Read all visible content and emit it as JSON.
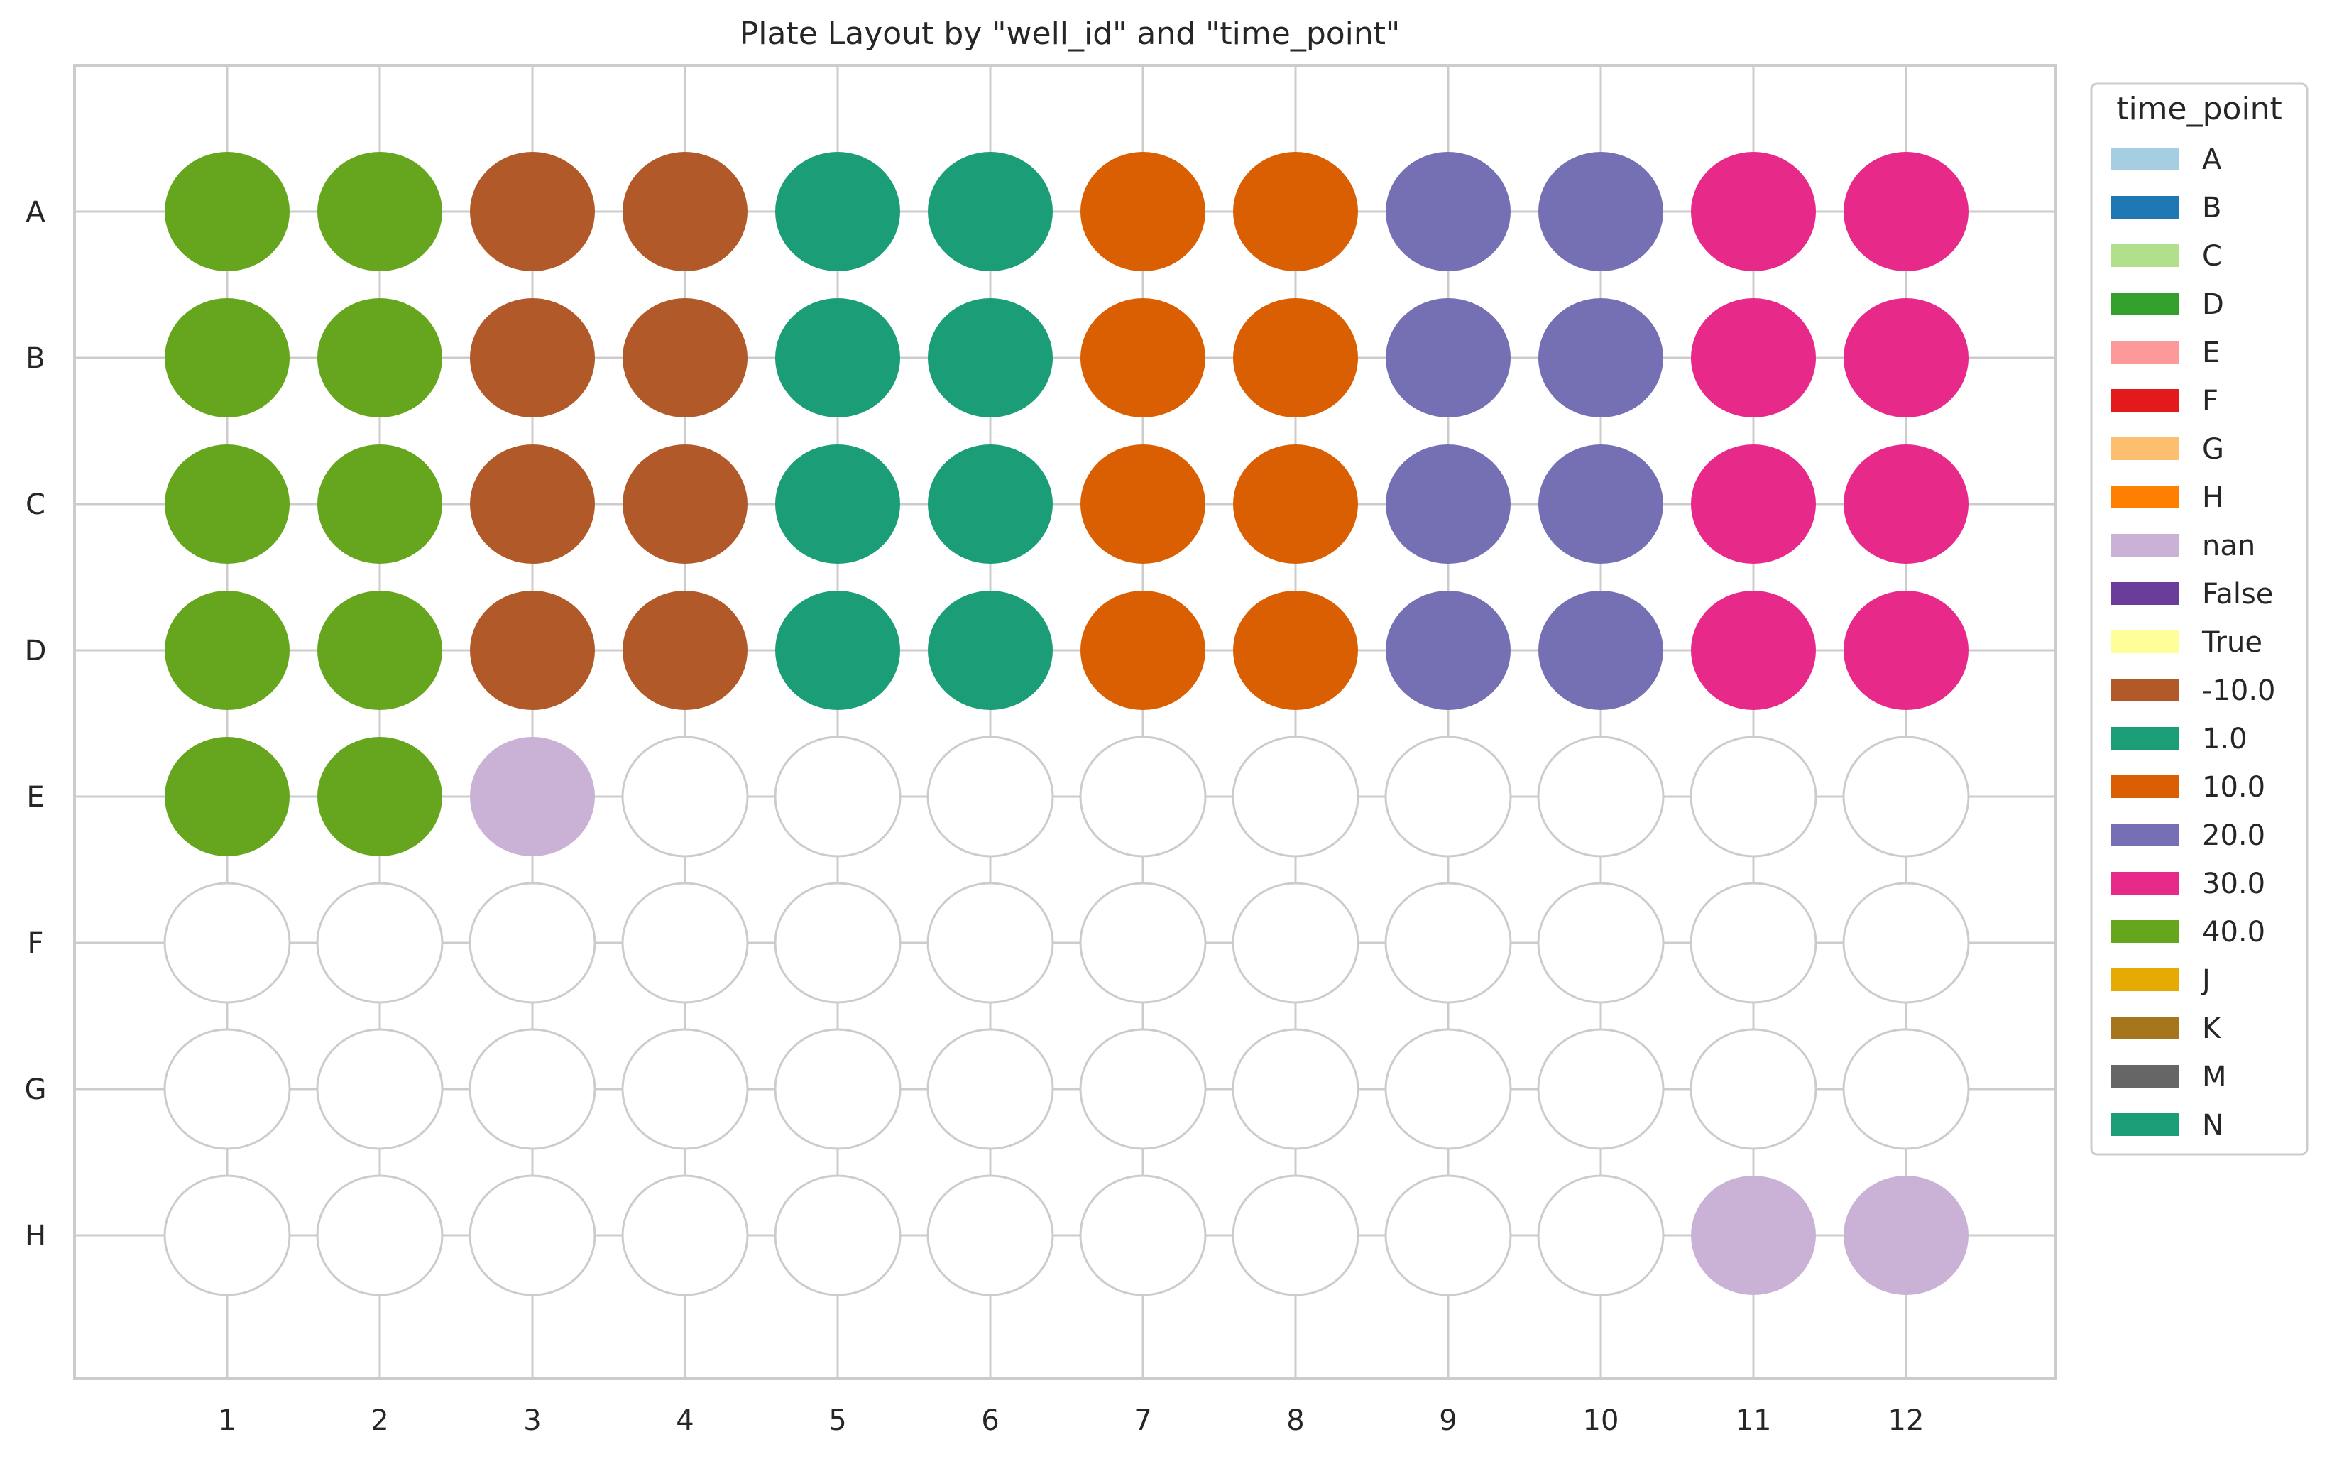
{
  "chart_data": {
    "type": "scatter",
    "title": "Plate Layout by \"well_id\" and \"time_point\"",
    "xlabel": "",
    "ylabel": "",
    "x_ticks": [
      "1",
      "2",
      "3",
      "4",
      "5",
      "6",
      "7",
      "8",
      "9",
      "10",
      "11",
      "12"
    ],
    "y_ticks": [
      "A",
      "B",
      "C",
      "D",
      "E",
      "F",
      "G",
      "H"
    ],
    "grid": true,
    "legend": {
      "title": "time_point",
      "placement": "outside right, top",
      "entries": [
        {
          "label": "A",
          "color": "#a6cee3"
        },
        {
          "label": "B",
          "color": "#1f78b4"
        },
        {
          "label": "C",
          "color": "#b2df8a"
        },
        {
          "label": "D",
          "color": "#33a02c"
        },
        {
          "label": "E",
          "color": "#fb9a99"
        },
        {
          "label": "F",
          "color": "#e31a1c"
        },
        {
          "label": "G",
          "color": "#fdbf6f"
        },
        {
          "label": "H",
          "color": "#ff7f00"
        },
        {
          "label": "nan",
          "color": "#cab2d6"
        },
        {
          "label": "False",
          "color": "#6a3d9a"
        },
        {
          "label": "True",
          "color": "#ffff99"
        },
        {
          "label": "-10.0",
          "color": "#b15928"
        },
        {
          "label": "1.0",
          "color": "#1b9e77"
        },
        {
          "label": "10.0",
          "color": "#d95f02"
        },
        {
          "label": "20.0",
          "color": "#7570b3"
        },
        {
          "label": "30.0",
          "color": "#e7298a"
        },
        {
          "label": "40.0",
          "color": "#66a61e"
        },
        {
          "label": "J",
          "color": "#e6ab02"
        },
        {
          "label": "K",
          "color": "#a6761d"
        },
        {
          "label": "M",
          "color": "#666666"
        },
        {
          "label": "N",
          "color": "#1b9e77"
        }
      ]
    },
    "empty_well_color": "#ffffff",
    "wells": [
      {
        "row": "A",
        "col": 1,
        "time_point": "40.0"
      },
      {
        "row": "A",
        "col": 2,
        "time_point": "40.0"
      },
      {
        "row": "A",
        "col": 3,
        "time_point": "-10.0"
      },
      {
        "row": "A",
        "col": 4,
        "time_point": "-10.0"
      },
      {
        "row": "A",
        "col": 5,
        "time_point": "1.0"
      },
      {
        "row": "A",
        "col": 6,
        "time_point": "1.0"
      },
      {
        "row": "A",
        "col": 7,
        "time_point": "10.0"
      },
      {
        "row": "A",
        "col": 8,
        "time_point": "10.0"
      },
      {
        "row": "A",
        "col": 9,
        "time_point": "20.0"
      },
      {
        "row": "A",
        "col": 10,
        "time_point": "20.0"
      },
      {
        "row": "A",
        "col": 11,
        "time_point": "30.0"
      },
      {
        "row": "A",
        "col": 12,
        "time_point": "30.0"
      },
      {
        "row": "B",
        "col": 1,
        "time_point": "40.0"
      },
      {
        "row": "B",
        "col": 2,
        "time_point": "40.0"
      },
      {
        "row": "B",
        "col": 3,
        "time_point": "-10.0"
      },
      {
        "row": "B",
        "col": 4,
        "time_point": "-10.0"
      },
      {
        "row": "B",
        "col": 5,
        "time_point": "1.0"
      },
      {
        "row": "B",
        "col": 6,
        "time_point": "1.0"
      },
      {
        "row": "B",
        "col": 7,
        "time_point": "10.0"
      },
      {
        "row": "B",
        "col": 8,
        "time_point": "10.0"
      },
      {
        "row": "B",
        "col": 9,
        "time_point": "20.0"
      },
      {
        "row": "B",
        "col": 10,
        "time_point": "20.0"
      },
      {
        "row": "B",
        "col": 11,
        "time_point": "30.0"
      },
      {
        "row": "B",
        "col": 12,
        "time_point": "30.0"
      },
      {
        "row": "C",
        "col": 1,
        "time_point": "40.0"
      },
      {
        "row": "C",
        "col": 2,
        "time_point": "40.0"
      },
      {
        "row": "C",
        "col": 3,
        "time_point": "-10.0"
      },
      {
        "row": "C",
        "col": 4,
        "time_point": "-10.0"
      },
      {
        "row": "C",
        "col": 5,
        "time_point": "1.0"
      },
      {
        "row": "C",
        "col": 6,
        "time_point": "1.0"
      },
      {
        "row": "C",
        "col": 7,
        "time_point": "10.0"
      },
      {
        "row": "C",
        "col": 8,
        "time_point": "10.0"
      },
      {
        "row": "C",
        "col": 9,
        "time_point": "20.0"
      },
      {
        "row": "C",
        "col": 10,
        "time_point": "20.0"
      },
      {
        "row": "C",
        "col": 11,
        "time_point": "30.0"
      },
      {
        "row": "C",
        "col": 12,
        "time_point": "30.0"
      },
      {
        "row": "D",
        "col": 1,
        "time_point": "40.0"
      },
      {
        "row": "D",
        "col": 2,
        "time_point": "40.0"
      },
      {
        "row": "D",
        "col": 3,
        "time_point": "-10.0"
      },
      {
        "row": "D",
        "col": 4,
        "time_point": "-10.0"
      },
      {
        "row": "D",
        "col": 5,
        "time_point": "1.0"
      },
      {
        "row": "D",
        "col": 6,
        "time_point": "1.0"
      },
      {
        "row": "D",
        "col": 7,
        "time_point": "10.0"
      },
      {
        "row": "D",
        "col": 8,
        "time_point": "10.0"
      },
      {
        "row": "D",
        "col": 9,
        "time_point": "20.0"
      },
      {
        "row": "D",
        "col": 10,
        "time_point": "20.0"
      },
      {
        "row": "D",
        "col": 11,
        "time_point": "30.0"
      },
      {
        "row": "D",
        "col": 12,
        "time_point": "30.0"
      },
      {
        "row": "E",
        "col": 1,
        "time_point": "40.0"
      },
      {
        "row": "E",
        "col": 2,
        "time_point": "40.0"
      },
      {
        "row": "E",
        "col": 3,
        "time_point": "nan"
      },
      {
        "row": "H",
        "col": 11,
        "time_point": "nan"
      },
      {
        "row": "H",
        "col": 12,
        "time_point": "nan"
      }
    ]
  }
}
